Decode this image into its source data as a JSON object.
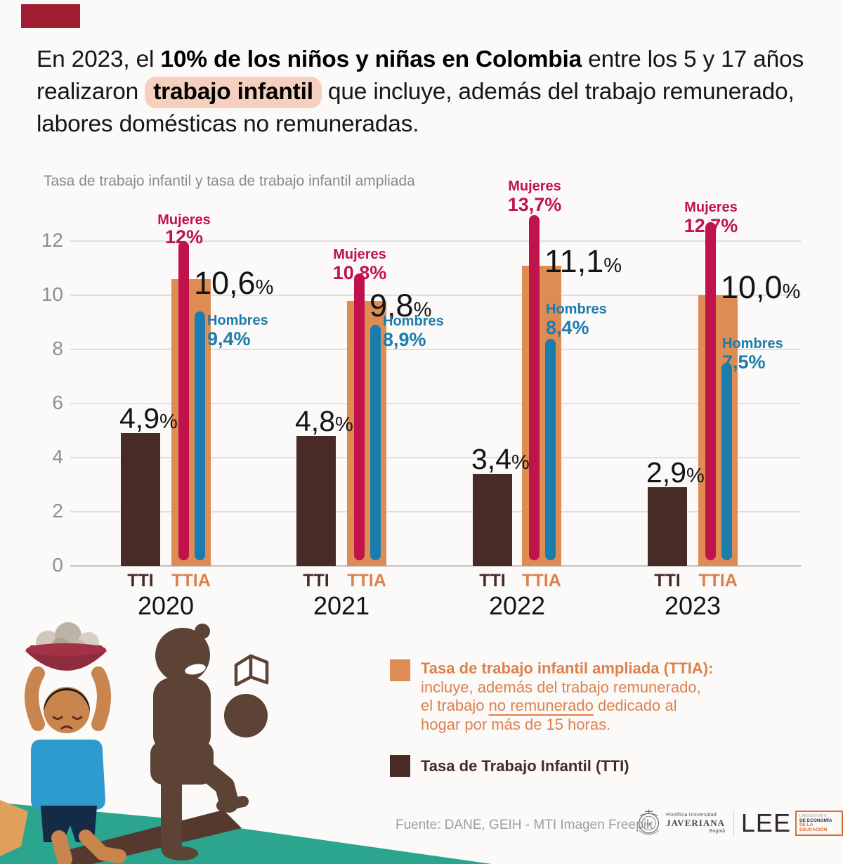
{
  "page": {
    "background": "#FBFAF9",
    "accent_bar_color": "#A01C31"
  },
  "title": {
    "highlight_color": "#F6D0BE",
    "segments": [
      {
        "text": "En 2023, el ",
        "style": "regular"
      },
      {
        "text": "10% de los niños y niñas en Colombia",
        "style": "bold"
      },
      {
        "text": " entre los 5 y 17 años realizaron ",
        "style": "regular"
      },
      {
        "text": "trabajo infantil",
        "style": "bold-highlight"
      },
      {
        "text": " que incluye, además del trabajo remunerado, labores domésticas no remuneradas.",
        "style": "regular"
      }
    ]
  },
  "chart_data": {
    "type": "bar",
    "title": "Tasa de trabajo infantil y tasa de trabajo infantil ampliada",
    "xlabel": "",
    "ylabel": "",
    "unit": "%",
    "ylim": [
      0,
      13
    ],
    "yticks": [
      0,
      2,
      4,
      6,
      8,
      10,
      12
    ],
    "grid": true,
    "legend_position": "bottom",
    "series_labels": {
      "tti": "TTI",
      "ttia": "TTIA",
      "mujeres": "Mujeres",
      "hombres": "Hombres"
    },
    "colors": {
      "tti": "#482A27",
      "ttia": "#DE8B54",
      "mujeres": "#C1134B",
      "hombres": "#1B7DAD",
      "value_text": "#141414",
      "tick_text": "#8F8F8F",
      "tti_label_text": "#482A27",
      "ttia_label_text": "#DC814B"
    },
    "groups": [
      {
        "year": "2020",
        "tti": 4.9,
        "ttia": 10.6,
        "mujeres": 12.0,
        "hombres": 9.4,
        "tti_display": "4,9",
        "ttia_display": "10,6",
        "mujeres_display": "12%",
        "hombres_display": "9,4%"
      },
      {
        "year": "2021",
        "tti": 4.8,
        "ttia": 9.8,
        "mujeres": 10.8,
        "hombres": 8.9,
        "tti_display": "4,8",
        "ttia_display": "9,8",
        "mujeres_display": "10,8%",
        "hombres_display": "8,9%"
      },
      {
        "year": "2022",
        "tti": 3.4,
        "ttia": 11.1,
        "mujeres": 13.7,
        "hombres": 8.4,
        "tti_display": "3,4",
        "ttia_display": "11,1",
        "mujeres_display": "13,7%",
        "hombres_display": "8,4%"
      },
      {
        "year": "2023",
        "tti": 2.9,
        "ttia": 10.0,
        "mujeres": 12.7,
        "hombres": 7.5,
        "tti_display": "2,9",
        "ttia_display": "10,0",
        "mujeres_display": "12,7%",
        "hombres_display": "7,5%"
      }
    ]
  },
  "legend": {
    "ttia": {
      "title": "Tasa de trabajo infantil ampliada (TTIA):",
      "line2": "incluye, además del trabajo remunerado,",
      "line3_pre": "el trabajo ",
      "line3_underlined": "no remunerado",
      "line3_post": "  dedicado al",
      "line4": "hogar por más de 15 horas.",
      "text_color": "#DC814B",
      "swatch_color": "#DE8B54"
    },
    "tti": {
      "label": "Tasa de Trabajo Infantil (TTI)",
      "text_color": "#482A27",
      "swatch_color": "#482A27"
    }
  },
  "footer": {
    "source": "Fuente: DANE, GEIH - MTI  Imagen Freepik",
    "javeriana": {
      "line1": "Pontificia Universidad",
      "line2": "JAVERIANA",
      "line3": "Bogotá"
    },
    "lee": {
      "acronym": "LEE",
      "box_line1": "LABORATORIO",
      "box_line2": "DE ECONOMÍA",
      "box_line3": "DE LA EDUCACIÓN"
    }
  },
  "illustration": {
    "ground_color": "#2CA48E",
    "silhouette_color": "#5D4236",
    "shirt_color": "#2E9BD0",
    "skin_color": "#C8854E",
    "bowl_color": "#8E2B3C"
  }
}
